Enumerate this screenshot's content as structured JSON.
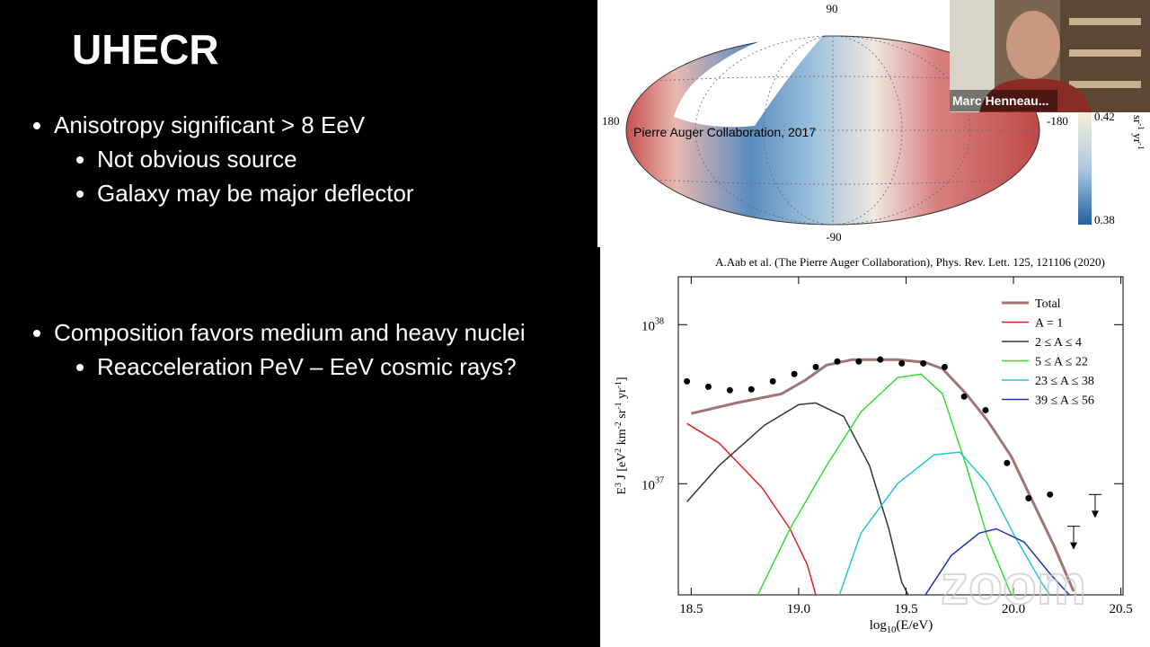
{
  "slide": {
    "title": "UHECR",
    "bullets": [
      {
        "text": "Anisotropy significant > 8 EeV",
        "sub": [
          "Not obvious source",
          "Galaxy may be major deflector"
        ]
      },
      {
        "text": "Composition favors medium and heavy nuclei",
        "sub": [
          "Reacceleration PeV – EeV cosmic rays?"
        ]
      }
    ]
  },
  "skymap": {
    "lat_top": "90",
    "lat_bottom": "-90",
    "lon_left": "180",
    "lon_right": "-180",
    "credit": "Pierre Auger Collaboration, 2017",
    "colorbar_max": "0.42",
    "colorbar_min": "0.38",
    "colorbar_unit": [
      "sr",
      "-1",
      " yr",
      "-1"
    ]
  },
  "video": {
    "participant": "Marc Henneau...",
    "watermark": "zoom"
  },
  "chart_data": {
    "type": "line",
    "title": "A.Aab et al. (The Pierre Auger Collaboration), Phys. Rev. Lett. 125, 121106 (2020)",
    "xlabel": [
      "log",
      "10",
      "(E/eV)"
    ],
    "ylabel": [
      "E",
      "3",
      " J [eV",
      "2",
      " km",
      "-2",
      " sr",
      "-1",
      " yr",
      "-1",
      "]"
    ],
    "xlim": [
      18.44,
      20.51
    ],
    "xticks": [
      18.5,
      {
        "value": 19,
        "label": "19.0"
      },
      19.5,
      {
        "value": 20,
        "label": "20.0"
      },
      20.5
    ],
    "ylim": [
      2e+36,
      2e+38
    ],
    "ylog": true,
    "yticks": [
      {
        "value": 1e+37,
        "label": "10",
        "exponent": "37"
      },
      {
        "value": 1e+38,
        "label": "10",
        "exponent": "38"
      }
    ],
    "legend": "upper right",
    "series": [
      {
        "name": "Total",
        "color": "#a07474",
        "x": [
          18.5,
          18.71,
          18.92,
          19.03,
          19.13,
          19.25,
          19.46,
          19.59,
          19.67,
          19.78,
          19.88,
          19.99,
          20.09,
          20.19,
          20.28
        ],
        "values": [
          2.76e+37,
          3.22e+37,
          3.67e+37,
          4.47e+37,
          5.57e+37,
          6.03e+37,
          6.03e+37,
          5.79e+37,
          5.28e+37,
          3.67e+37,
          2.49e+37,
          1.48e+37,
          7.7e+36,
          4.03e+36,
          2.1e+36
        ]
      },
      {
        "name": "A = 1",
        "color": "#e02020",
        "x": [
          18.48,
          18.63,
          18.83,
          18.96,
          19.04,
          19.08
        ],
        "values": [
          2.39e+37,
          1.8e+37,
          9.4e+36,
          5.2e+36,
          3.1e+36,
          2e+36
        ]
      },
      {
        "name": "2 ≤ A ≤ 4",
        "color": "#333333",
        "x": [
          18.48,
          18.63,
          18.84,
          19.0,
          19.08,
          19.21,
          19.33,
          19.42,
          19.48,
          19.51
        ],
        "values": [
          7.7e+36,
          1.3e+37,
          2.33e+37,
          3.14e+37,
          3.22e+37,
          2.65e+37,
          1.3e+37,
          5.2e+36,
          2.4e+36,
          2e+36
        ]
      },
      {
        "name": "5 ≤ A ≤ 22",
        "color": "#30e030",
        "x": [
          18.81,
          18.96,
          19.13,
          19.29,
          19.46,
          19.57,
          19.67,
          19.78,
          19.88,
          19.99
        ],
        "values": [
          2e+36,
          5.2e+36,
          1.3e+37,
          2.83e+37,
          4.64e+37,
          4.89e+37,
          3.67e+37,
          1.3e+37,
          4.58e+36,
          2e+36
        ]
      },
      {
        "name": "23 ≤ A ≤ 38",
        "color": "#20c8d0",
        "x": [
          19.19,
          19.29,
          19.46,
          19.63,
          19.75,
          19.88,
          20.01,
          20.13,
          20.17
        ],
        "values": [
          2e+36,
          4.89e+36,
          1e+37,
          1.52e+37,
          1.58e+37,
          1e+37,
          4.58e+36,
          2.4e+36,
          2e+36
        ]
      },
      {
        "name": "39 ≤ A ≤ 56",
        "color": "#2030b0",
        "x": [
          19.59,
          19.71,
          19.84,
          19.92,
          20.05,
          20.17,
          20.26
        ],
        "values": [
          2e+36,
          3.53e+36,
          4.89e+36,
          5.2e+36,
          4.3e+36,
          2.72e+36,
          2e+36
        ]
      }
    ],
    "points": {
      "color": "#000000",
      "x": [
        18.48,
        18.58,
        18.68,
        18.78,
        18.88,
        18.98,
        19.08,
        19.18,
        19.28,
        19.38,
        19.48,
        19.58,
        19.68,
        19.77,
        19.87,
        19.97,
        20.07,
        20.17
      ],
      "values": [
        4.4e+37,
        4.07e+37,
        3.87e+37,
        3.92e+37,
        4.4e+37,
        4.89e+37,
        5.42e+37,
        5.87e+37,
        5.87e+37,
        6.03e+37,
        5.71e+37,
        5.71e+37,
        5.42e+37,
        3.53e+37,
        2.9e+37,
        1.35e+37,
        8.1e+36,
        8.55e+36
      ]
    },
    "upper_limits": {
      "color": "#000000",
      "x": [
        20.28,
        20.38
      ],
      "values": [
        5.4e+36,
        8.55e+36
      ]
    }
  }
}
